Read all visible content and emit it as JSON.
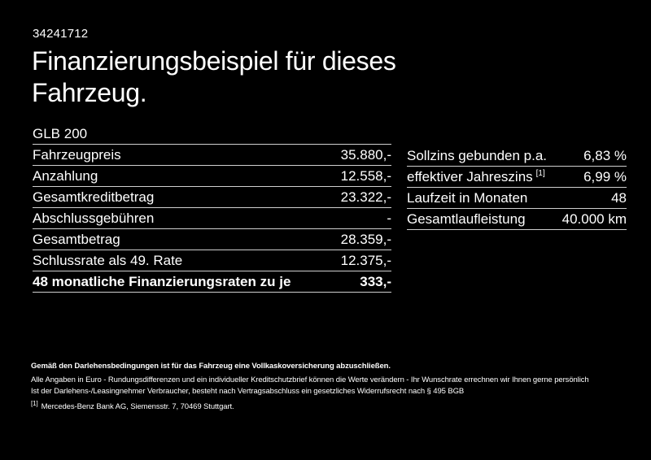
{
  "colors": {
    "background": "#000000",
    "text": "#ffffff",
    "divider": "#cfcfcf"
  },
  "doc_number": "34241712",
  "title": {
    "line1": "Finanzierungsbeispiel für dieses",
    "line2": "Fahrzeug."
  },
  "model": "GLB 200",
  "left_table": {
    "rows": [
      {
        "label": "Fahrzeugpreis",
        "value": "35.880,-",
        "bold": false
      },
      {
        "label": "Anzahlung",
        "value": "12.558,-",
        "bold": false
      },
      {
        "label": "Gesamtkreditbetrag",
        "value": "23.322,-",
        "bold": false
      },
      {
        "label": "Abschlussgebühren",
        "value": "-",
        "bold": false
      },
      {
        "label": "Gesamtbetrag",
        "value": "28.359,-",
        "bold": false
      },
      {
        "label": "Schlussrate als 49. Rate",
        "value": "12.375,-",
        "bold": false
      },
      {
        "label": "48 monatliche Finanzierungsraten zu je",
        "value": "333,-",
        "bold": true
      }
    ]
  },
  "right_table": {
    "rows": [
      {
        "label": "Sollzins gebunden p.a.",
        "sup": "",
        "value": "6,83 %"
      },
      {
        "label": "effektiver Jahreszins",
        "sup": "[1]",
        "value": "6,99 %"
      },
      {
        "label": "Laufzeit in Monaten",
        "sup": "",
        "value": "48"
      },
      {
        "label": "Gesamtlaufleistung",
        "sup": "",
        "value": "40.000 km"
      }
    ]
  },
  "footer": {
    "bold_line": "Gemäß den Darlehensbedingungen ist für das Fahrzeug eine Vollkaskoversicherung abzuschließen.",
    "line2": "Alle Angaben in Euro - Rundungsdifferenzen und ein individueller Kreditschutzbrief können die Werte verändern - Ihr Wunschrate errechnen wir Ihnen gerne persönlich",
    "line3": "Ist der Darlehens-/Leasingnehmer Verbraucher, besteht nach Vertragsabschluss ein gesetzliches Widerrufsrecht nach § 495 BGB",
    "footnote_marker": "[1]",
    "footnote_text": "Mercedes-Benz Bank AG, Siemensstr. 7, 70469 Stuttgart."
  }
}
